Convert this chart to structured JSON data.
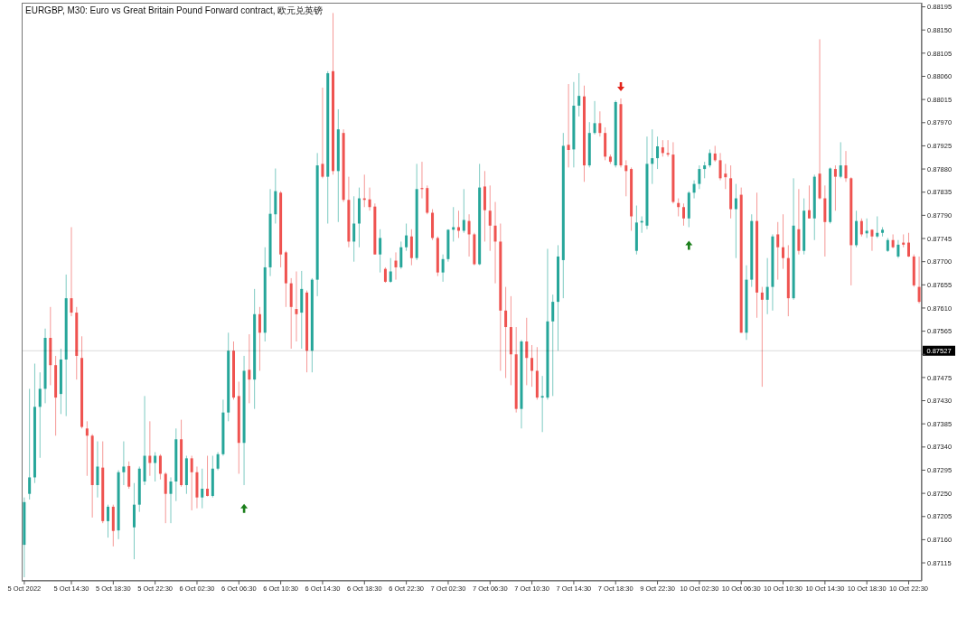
{
  "chart_data": {
    "type": "candlestick",
    "title": "EURGBP, M30:  Euro vs Great Britain Pound Forward contract, 欧元兑英镑",
    "categories": [
      "5 Oct 2022",
      null,
      null,
      null,
      null,
      null,
      null,
      null,
      null,
      "5 Oct 14:30",
      null,
      null,
      null,
      null,
      null,
      null,
      null,
      "5 Oct 18:30",
      null,
      null,
      null,
      null,
      null,
      null,
      null,
      "5 Oct 22:30",
      null,
      null,
      null,
      null,
      null,
      null,
      null,
      "6 Oct 02:30",
      null,
      null,
      null,
      null,
      null,
      null,
      null,
      "6 Oct 06:30",
      null,
      null,
      null,
      null,
      null,
      null,
      null,
      "6 Oct 10:30",
      null,
      null,
      null,
      null,
      null,
      null,
      null,
      "6 Oct 14:30",
      null,
      null,
      null,
      null,
      null,
      null,
      null,
      "6 Oct 18:30",
      null,
      null,
      null,
      null,
      null,
      null,
      null,
      "6 Oct 22:30",
      null,
      null,
      null,
      null,
      null,
      null,
      null,
      "7 Oct 02:30",
      null,
      null,
      null,
      null,
      null,
      null,
      null,
      "7 Oct 06:30",
      null,
      null,
      null,
      null,
      null,
      null,
      null,
      "7 Oct 10:30",
      null,
      null,
      null,
      null,
      null,
      null,
      null,
      "7 Oct 14:30",
      null,
      null,
      null,
      null,
      null,
      null,
      null,
      "7 Oct 18:30",
      null,
      null,
      null,
      null,
      null,
      null,
      null,
      "9 Oct 22:30",
      null,
      null,
      null,
      null,
      null,
      null,
      null,
      "10 Oct 02:30",
      null,
      null,
      null,
      null,
      null,
      null,
      null,
      "10 Oct 06:30",
      null,
      null,
      null,
      null,
      null,
      null,
      null,
      "10 Oct 10:30",
      null,
      null,
      null,
      null,
      null,
      null,
      null,
      "10 Oct 14:30",
      null,
      null,
      null,
      null,
      null,
      null,
      null,
      "10 Oct 18:30",
      null,
      null,
      null,
      null,
      null,
      null,
      null,
      "10 Oct 22:30",
      null,
      null
    ],
    "ohlc": [
      [
        0.8715,
        0.87242,
        0.87087,
        0.87233
      ],
      [
        0.87249,
        0.87453,
        0.87238,
        0.87281
      ],
      [
        0.87281,
        0.87502,
        0.8727,
        0.87418
      ],
      [
        0.87418,
        0.87485,
        0.87319,
        0.87453
      ],
      [
        0.87453,
        0.8757,
        0.87425,
        0.87552
      ],
      [
        0.87552,
        0.87612,
        0.8746,
        0.87499
      ],
      [
        0.87499,
        0.87517,
        0.87362,
        0.87436
      ],
      [
        0.87443,
        0.87531,
        0.87404,
        0.8751
      ],
      [
        0.8751,
        0.87675,
        0.874,
        0.87629
      ],
      [
        0.87629,
        0.87767,
        0.87594,
        0.87601
      ],
      [
        0.87601,
        0.87612,
        0.87471,
        0.87517
      ],
      [
        0.87513,
        0.87555,
        0.87376,
        0.87379
      ],
      [
        0.87376,
        0.8739,
        0.87284,
        0.87362
      ],
      [
        0.87362,
        0.87365,
        0.87203,
        0.87266
      ],
      [
        0.87266,
        0.87351,
        0.87242,
        0.87302
      ],
      [
        0.873,
        0.87351,
        0.87192,
        0.87196
      ],
      [
        0.87196,
        0.87228,
        0.87164,
        0.87224
      ],
      [
        0.87224,
        0.87228,
        0.87147,
        0.87177
      ],
      [
        0.87178,
        0.87295,
        0.87161,
        0.87291
      ],
      [
        0.87291,
        0.87351,
        0.87266,
        0.87302
      ],
      [
        0.87303,
        0.87312,
        0.87259,
        0.87263
      ],
      [
        0.87184,
        0.8727,
        0.87122,
        0.87228
      ],
      [
        0.87228,
        0.87302,
        0.87214,
        0.87298
      ],
      [
        0.87273,
        0.87439,
        0.87266,
        0.87323
      ],
      [
        0.87323,
        0.8739,
        0.87284,
        0.87309
      ],
      [
        0.87309,
        0.8733,
        0.87273,
        0.87323
      ],
      [
        0.87323,
        0.87326,
        0.87277,
        0.87288
      ],
      [
        0.87288,
        0.87291,
        0.87192,
        0.87249
      ],
      [
        0.87249,
        0.87281,
        0.87192,
        0.87273
      ],
      [
        0.87273,
        0.87376,
        0.87235,
        0.87355
      ],
      [
        0.87355,
        0.87393,
        0.87263,
        0.87266
      ],
      [
        0.87266,
        0.87323,
        0.87249,
        0.87318
      ],
      [
        0.87318,
        0.87323,
        0.87217,
        0.87291
      ],
      [
        0.87291,
        0.87302,
        0.87221,
        0.87242
      ],
      [
        0.87242,
        0.87298,
        0.87221,
        0.87259
      ],
      [
        0.87259,
        0.87323,
        0.87244,
        0.87245
      ],
      [
        0.87245,
        0.87323,
        0.87242,
        0.87298
      ],
      [
        0.87298,
        0.8733,
        0.87295,
        0.87326
      ],
      [
        0.87326,
        0.87432,
        0.87323,
        0.87407
      ],
      [
        0.87407,
        0.87562,
        0.8739,
        0.87527
      ],
      [
        0.87527,
        0.87545,
        0.87432,
        0.87436
      ],
      [
        0.87439,
        0.87467,
        0.87288,
        0.87348
      ],
      [
        0.87348,
        0.87517,
        0.87266,
        0.87488
      ],
      [
        0.8749,
        0.87559,
        0.87425,
        0.87471
      ],
      [
        0.87471,
        0.87647,
        0.87414,
        0.87598
      ],
      [
        0.87598,
        0.87612,
        0.87488,
        0.87562
      ],
      [
        0.87562,
        0.87728,
        0.87545,
        0.87689
      ],
      [
        0.87689,
        0.87841,
        0.87672,
        0.87793
      ],
      [
        0.87792,
        0.87881,
        0.87774,
        0.87837
      ],
      [
        0.87834,
        0.87837,
        0.87689,
        0.87714
      ],
      [
        0.87718,
        0.87721,
        0.87612,
        0.87658
      ],
      [
        0.87658,
        0.87668,
        0.87531,
        0.87612
      ],
      [
        0.87608,
        0.87681,
        0.87545,
        0.87598
      ],
      [
        0.87601,
        0.87682,
        0.87531,
        0.87647
      ],
      [
        0.8764,
        0.87644,
        0.87485,
        0.87527
      ],
      [
        0.87527,
        0.87668,
        0.87485,
        0.87665
      ],
      [
        0.87665,
        0.87911,
        0.87633,
        0.87887
      ],
      [
        0.8789,
        0.88038,
        0.87862,
        0.87865
      ],
      [
        0.87865,
        0.8807,
        0.87774,
        0.88066
      ],
      [
        0.8807,
        0.88183,
        0.87869,
        0.87876
      ],
      [
        0.87876,
        0.87996,
        0.87777,
        0.87957
      ],
      [
        0.8795,
        0.87957,
        0.87816,
        0.8782
      ],
      [
        0.8782,
        0.87865,
        0.87728,
        0.87739
      ],
      [
        0.87739,
        0.87827,
        0.877,
        0.87774
      ],
      [
        0.87774,
        0.87844,
        0.87728,
        0.87823
      ],
      [
        0.87823,
        0.87869,
        0.87806,
        0.8782
      ],
      [
        0.87821,
        0.87844,
        0.87799,
        0.87806
      ],
      [
        0.87807,
        0.87813,
        0.87714,
        0.87714
      ],
      [
        0.87714,
        0.87763,
        0.87679,
        0.87746
      ],
      [
        0.87686,
        0.87689,
        0.87659,
        0.87661
      ],
      [
        0.87661,
        0.87707,
        0.87659,
        0.87681
      ],
      [
        0.87702,
        0.87718,
        0.87665,
        0.87689
      ],
      [
        0.87689,
        0.87739,
        0.87686,
        0.87728
      ],
      [
        0.87728,
        0.87774,
        0.87721,
        0.87751
      ],
      [
        0.87749,
        0.87763,
        0.87693,
        0.87707
      ],
      [
        0.87707,
        0.8789,
        0.87703,
        0.87841
      ],
      [
        0.87843,
        0.87894,
        0.87823,
        0.87841
      ],
      [
        0.87843,
        0.87848,
        0.87792,
        0.87795
      ],
      [
        0.87795,
        0.87802,
        0.87742,
        0.87746
      ],
      [
        0.87746,
        0.87749,
        0.87672,
        0.87679
      ],
      [
        0.87679,
        0.87714,
        0.87661,
        0.87705
      ],
      [
        0.87705,
        0.87763,
        0.877,
        0.87762
      ],
      [
        0.87762,
        0.87806,
        0.87739,
        0.87767
      ],
      [
        0.87767,
        0.87799,
        0.87746,
        0.8776
      ],
      [
        0.8776,
        0.87841,
        0.87756,
        0.87781
      ],
      [
        0.87779,
        0.87792,
        0.8771,
        0.87753
      ],
      [
        0.87753,
        0.87756,
        0.87693,
        0.87695
      ],
      [
        0.87695,
        0.8789,
        0.87693,
        0.87844
      ],
      [
        0.87846,
        0.87876,
        0.87739,
        0.878
      ],
      [
        0.87799,
        0.87848,
        0.87721,
        0.8777
      ],
      [
        0.8777,
        0.87816,
        0.87658,
        0.87739
      ],
      [
        0.87739,
        0.87774,
        0.87488,
        0.87605
      ],
      [
        0.87605,
        0.87651,
        0.87474,
        0.87573
      ],
      [
        0.87573,
        0.87633,
        0.8746,
        0.8752
      ],
      [
        0.8752,
        0.87573,
        0.87407,
        0.87414
      ],
      [
        0.87414,
        0.87548,
        0.87376,
        0.87545
      ],
      [
        0.87545,
        0.87591,
        0.8746,
        0.87513
      ],
      [
        0.87513,
        0.87538,
        0.87457,
        0.87488
      ],
      [
        0.87488,
        0.87534,
        0.87432,
        0.87436
      ],
      [
        0.87436,
        0.87478,
        0.87369,
        0.87439
      ],
      [
        0.87436,
        0.87725,
        0.87432,
        0.87584
      ],
      [
        0.87584,
        0.87636,
        0.87439,
        0.87622
      ],
      [
        0.87622,
        0.87732,
        0.87527,
        0.8771
      ],
      [
        0.87703,
        0.8795,
        0.87629,
        0.87925
      ],
      [
        0.87927,
        0.88045,
        0.87883,
        0.87917
      ],
      [
        0.87918,
        0.88049,
        0.87883,
        0.88003
      ],
      [
        0.88003,
        0.88066,
        0.87982,
        0.88022
      ],
      [
        0.88021,
        0.88042,
        0.87855,
        0.87887
      ],
      [
        0.87887,
        0.87971,
        0.87883,
        0.8795
      ],
      [
        0.8795,
        0.88012,
        0.87947,
        0.87969
      ],
      [
        0.87969,
        0.87992,
        0.87943,
        0.8795
      ],
      [
        0.8795,
        0.87961,
        0.87897,
        0.87904
      ],
      [
        0.87904,
        0.87908,
        0.8789,
        0.87894
      ],
      [
        0.87887,
        0.88013,
        0.87883,
        0.8801
      ],
      [
        0.88006,
        0.88017,
        0.87883,
        0.87887
      ],
      [
        0.87887,
        0.87897,
        0.87827,
        0.87876
      ],
      [
        0.8788,
        0.87883,
        0.8776,
        0.87788
      ],
      [
        0.87721,
        0.87809,
        0.87714,
        0.87776
      ],
      [
        0.87776,
        0.87788,
        0.87756,
        0.87779
      ],
      [
        0.8777,
        0.87943,
        0.87763,
        0.8789
      ],
      [
        0.8789,
        0.87957,
        0.87851,
        0.87901
      ],
      [
        0.87901,
        0.87943,
        0.8788,
        0.87924
      ],
      [
        0.87922,
        0.87936,
        0.87904,
        0.87911
      ],
      [
        0.87911,
        0.87936,
        0.87904,
        0.87908
      ],
      [
        0.87908,
        0.87932,
        0.87813,
        0.87816
      ],
      [
        0.87814,
        0.87823,
        0.87788,
        0.87806
      ],
      [
        0.87806,
        0.87813,
        0.8777,
        0.87784
      ],
      [
        0.87784,
        0.87837,
        0.87767,
        0.87834
      ],
      [
        0.87834,
        0.87858,
        0.87823,
        0.87851
      ],
      [
        0.87851,
        0.87887,
        0.87841,
        0.8788
      ],
      [
        0.8788,
        0.87894,
        0.87862,
        0.87887
      ],
      [
        0.87887,
        0.87918,
        0.87883,
        0.87911
      ],
      [
        0.8791,
        0.87925,
        0.87894,
        0.87897
      ],
      [
        0.87897,
        0.87911,
        0.87858,
        0.87862
      ],
      [
        0.87871,
        0.8789,
        0.87841,
        0.87864
      ],
      [
        0.87862,
        0.87887,
        0.87784,
        0.87802
      ],
      [
        0.87802,
        0.87851,
        0.87707,
        0.87823
      ],
      [
        0.8783,
        0.87844,
        0.87562,
        0.87562
      ],
      [
        0.87562,
        0.87693,
        0.87548,
        0.87665
      ],
      [
        0.87665,
        0.87792,
        0.87651,
        0.87779
      ],
      [
        0.87779,
        0.87834,
        0.87591,
        0.8764
      ],
      [
        0.8764,
        0.87651,
        0.87457,
        0.87626
      ],
      [
        0.87626,
        0.87707,
        0.87598,
        0.87651
      ],
      [
        0.87651,
        0.87753,
        0.87605,
        0.87749
      ],
      [
        0.87753,
        0.87777,
        0.87665,
        0.87728
      ],
      [
        0.87728,
        0.87792,
        0.87686,
        0.87707
      ],
      [
        0.87707,
        0.87732,
        0.87594,
        0.87629
      ],
      [
        0.87629,
        0.87862,
        0.87626,
        0.8777
      ],
      [
        0.87763,
        0.87841,
        0.87714,
        0.87721
      ],
      [
        0.87721,
        0.87823,
        0.87714,
        0.87799
      ],
      [
        0.878,
        0.87848,
        0.87784,
        0.87784
      ],
      [
        0.87784,
        0.87869,
        0.87742,
        0.87865
      ],
      [
        0.87871,
        0.88132,
        0.87821,
        0.87823
      ],
      [
        0.87823,
        0.87848,
        0.8771,
        0.87777
      ],
      [
        0.87777,
        0.87883,
        0.87774,
        0.87881
      ],
      [
        0.8788,
        0.87887,
        0.87799,
        0.87865
      ],
      [
        0.87865,
        0.87932,
        0.87862,
        0.87887
      ],
      [
        0.87887,
        0.87915,
        0.87855,
        0.87862
      ],
      [
        0.87862,
        0.87864,
        0.87654,
        0.87732
      ],
      [
        0.87732,
        0.87799,
        0.87728,
        0.87779
      ],
      [
        0.87779,
        0.87784,
        0.87749,
        0.87753
      ],
      [
        0.87755,
        0.87784,
        0.87746,
        0.8776
      ],
      [
        0.87762,
        0.87763,
        0.87721,
        0.87749
      ],
      [
        0.87749,
        0.87788,
        0.87746,
        0.87756
      ],
      [
        0.87756,
        0.87767,
        0.87749,
        0.87762
      ],
      [
        0.87721,
        0.87746,
        0.87719,
        0.87742
      ],
      [
        0.87742,
        0.87753,
        0.87726,
        0.87728
      ],
      [
        0.8771,
        0.87742,
        0.87707,
        0.87733
      ],
      [
        0.87737,
        0.87753,
        0.87728,
        0.87733
      ],
      [
        0.87737,
        0.87756,
        0.87709,
        0.8771
      ],
      [
        0.8771,
        0.87714,
        0.87651,
        0.87654
      ],
      [
        0.87651,
        0.8771,
        0.87619,
        0.87622
      ]
    ],
    "colors": [
      "#26a69a",
      "#26a69a",
      "#26a69a",
      "#26a69a",
      "#26a69a",
      "#ef5350",
      "#ef5350",
      "#26a69a",
      "#26a69a",
      "#ef5350",
      "#ef5350",
      "#ef5350",
      "#ef5350",
      "#ef5350",
      "#26a69a",
      "#ef5350",
      "#26a69a",
      "#ef5350",
      "#26a69a",
      "#26a69a",
      "#ef5350",
      "#26a69a",
      "#26a69a",
      "#26a69a",
      "#ef5350",
      "#26a69a",
      "#ef5350",
      "#ef5350",
      "#26a69a",
      "#26a69a",
      "#ef5350",
      "#26a69a",
      "#ef5350",
      "#ef5350",
      "#26a69a",
      "#ef5350",
      "#26a69a",
      "#26a69a",
      "#26a69a",
      "#26a69a",
      "#ef5350",
      "#ef5350",
      "#26a69a",
      "#ef5350",
      "#26a69a",
      "#ef5350",
      "#26a69a",
      "#26a69a",
      "#26a69a",
      "#ef5350",
      "#ef5350",
      "#ef5350",
      "#ef5350",
      "#26a69a",
      "#ef5350",
      "#26a69a",
      "#26a69a",
      "#ef5350",
      "#26a69a",
      "#ef5350",
      "#26a69a",
      "#ef5350",
      "#ef5350",
      "#26a69a",
      "#26a69a",
      "#ef5350",
      "#ef5350",
      "#ef5350",
      "#26a69a",
      "#ef5350",
      "#26a69a",
      "#ef5350",
      "#26a69a",
      "#26a69a",
      "#ef5350",
      "#26a69a",
      "#ef5350",
      "#ef5350",
      "#ef5350",
      "#ef5350",
      "#26a69a",
      "#26a69a",
      "#26a69a",
      "#ef5350",
      "#26a69a",
      "#ef5350",
      "#ef5350",
      "#26a69a",
      "#ef5350",
      "#ef5350",
      "#ef5350",
      "#ef5350",
      "#ef5350",
      "#ef5350",
      "#ef5350",
      "#26a69a",
      "#ef5350",
      "#ef5350",
      "#ef5350",
      "#26a69a",
      "#26a69a",
      "#26a69a",
      "#26a69a",
      "#26a69a",
      "#ef5350",
      "#26a69a",
      "#26a69a",
      "#ef5350",
      "#26a69a",
      "#26a69a",
      "#ef5350",
      "#ef5350",
      "#ef5350",
      "#26a69a",
      "#ef5350",
      "#ef5350",
      "#ef5350",
      "#26a69a",
      "#26a69a",
      "#26a69a",
      "#26a69a",
      "#26a69a",
      "#ef5350",
      "#ef5350",
      "#ef5350",
      "#ef5350",
      "#ef5350",
      "#26a69a",
      "#26a69a",
      "#26a69a",
      "#26a69a",
      "#26a69a",
      "#ef5350",
      "#ef5350",
      "#ef5350",
      "#ef5350",
      "#26a69a",
      "#ef5350",
      "#26a69a",
      "#26a69a",
      "#ef5350",
      "#ef5350",
      "#26a69a",
      "#26a69a",
      "#ef5350",
      "#ef5350",
      "#ef5350",
      "#26a69a",
      "#ef5350",
      "#26a69a",
      "#ef5350",
      "#26a69a",
      "#ef5350",
      "#ef5350",
      "#26a69a",
      "#ef5350",
      "#26a69a",
      "#ef5350",
      "#ef5350",
      "#26a69a",
      "#ef5350",
      "#26a69a",
      "#ef5350",
      "#26a69a",
      "#26a69a",
      "#26a69a",
      "#ef5350",
      "#26a69a",
      "#ef5350",
      "#ef5350",
      "#ef5350",
      "#ef5350"
    ],
    "series": [
      {
        "type": "scatter",
        "color": "#1b7f1b",
        "marker": "triangle",
        "values": [
          null,
          null,
          null,
          null,
          null,
          null,
          null,
          null,
          null,
          null,
          null,
          null,
          null,
          null,
          null,
          null,
          null,
          null,
          null,
          null,
          null,
          null,
          null,
          null,
          null,
          null,
          null,
          null,
          null,
          null,
          null,
          null,
          null,
          null,
          null,
          null,
          null,
          null,
          null,
          null,
          null,
          null,
          0.87221,
          null,
          null,
          null,
          null,
          null,
          null,
          null,
          null,
          null,
          null,
          null,
          null,
          null,
          null,
          null,
          null,
          null,
          null,
          null,
          null,
          null,
          null,
          null,
          null,
          null,
          null,
          null,
          null,
          null,
          null,
          null,
          null,
          null,
          null,
          null,
          null,
          null,
          null,
          null,
          null,
          null,
          null,
          null,
          null,
          null,
          null,
          null,
          null,
          null,
          null,
          null,
          null,
          null,
          null,
          null,
          null,
          null,
          null,
          null,
          null,
          null,
          null,
          null,
          null,
          null,
          null,
          null,
          null,
          null,
          null,
          null,
          null,
          null,
          null,
          null,
          null,
          null,
          null,
          null,
          null,
          null,
          null,
          null,
          null,
          0.87732,
          null,
          null,
          null,
          null,
          null,
          null,
          null,
          null,
          null,
          null,
          null,
          null,
          null,
          null,
          null,
          null,
          null,
          null,
          null,
          null,
          null,
          null,
          null,
          null,
          null,
          null,
          null,
          null,
          null,
          null,
          null,
          null,
          null,
          null,
          null,
          null,
          null,
          null,
          null,
          null,
          null,
          null,
          null,
          null
        ]
      },
      {
        "type": "scatter",
        "color": "#e3241b",
        "marker": "triangle",
        "values": [
          null,
          null,
          null,
          null,
          null,
          null,
          null,
          null,
          null,
          null,
          null,
          null,
          null,
          null,
          null,
          null,
          null,
          null,
          null,
          null,
          null,
          null,
          null,
          null,
          null,
          null,
          null,
          null,
          null,
          null,
          null,
          null,
          null,
          null,
          null,
          null,
          null,
          null,
          null,
          null,
          null,
          null,
          null,
          null,
          null,
          null,
          null,
          null,
          null,
          null,
          null,
          null,
          null,
          null,
          null,
          null,
          null,
          null,
          null,
          null,
          null,
          null,
          null,
          null,
          null,
          null,
          null,
          null,
          null,
          null,
          null,
          null,
          null,
          null,
          null,
          null,
          null,
          null,
          null,
          null,
          null,
          null,
          null,
          null,
          null,
          null,
          null,
          null,
          null,
          null,
          null,
          null,
          null,
          null,
          null,
          null,
          null,
          null,
          null,
          null,
          null,
          null,
          null,
          null,
          null,
          null,
          null,
          null,
          null,
          null,
          null,
          null,
          null,
          null,
          0.8804,
          null,
          null,
          null,
          null,
          null,
          null,
          null,
          null,
          null,
          null,
          null,
          null,
          null,
          null,
          null,
          null,
          null,
          null,
          null,
          null,
          null,
          null,
          null,
          null,
          null,
          null,
          null,
          null,
          null,
          null,
          null,
          null,
          null,
          null,
          null,
          null,
          null,
          null,
          null,
          null,
          null,
          null,
          null,
          null,
          null,
          null,
          null,
          null,
          null,
          null,
          null,
          null,
          null,
          null,
          null,
          null,
          null
        ]
      }
    ],
    "ylim": [
      0.8708,
      0.88203
    ],
    "yticks": [
      0.88195,
      {
        "value": 0.8815,
        "label": "0.88150"
      },
      0.88105,
      {
        "value": 0.8806,
        "label": "0.88060"
      },
      0.88015,
      {
        "value": 0.8797,
        "label": "0.87970"
      },
      0.87925,
      {
        "value": 0.8788,
        "label": "0.87880"
      },
      0.87835,
      {
        "value": 0.8779,
        "label": "0.87790"
      },
      0.87745,
      {
        "value": 0.877,
        "label": "0.87700"
      },
      0.87655,
      {
        "value": 0.8761,
        "label": "0.87610"
      },
      0.87565,
      {
        "value": 0.8752,
        "label": null
      },
      0.87475,
      {
        "value": 0.8743,
        "label": "0.87430"
      },
      0.87385,
      {
        "value": 0.8734,
        "label": "0.87340"
      },
      0.87295,
      {
        "value": 0.8725,
        "label": "0.87250"
      },
      0.87205,
      {
        "value": 0.8716,
        "label": "0.87160"
      },
      0.87115
    ],
    "ref_lines": [
      {
        "axis": "y",
        "value": 0.87527,
        "label": "0.87527",
        "color": "#000000"
      }
    ]
  }
}
